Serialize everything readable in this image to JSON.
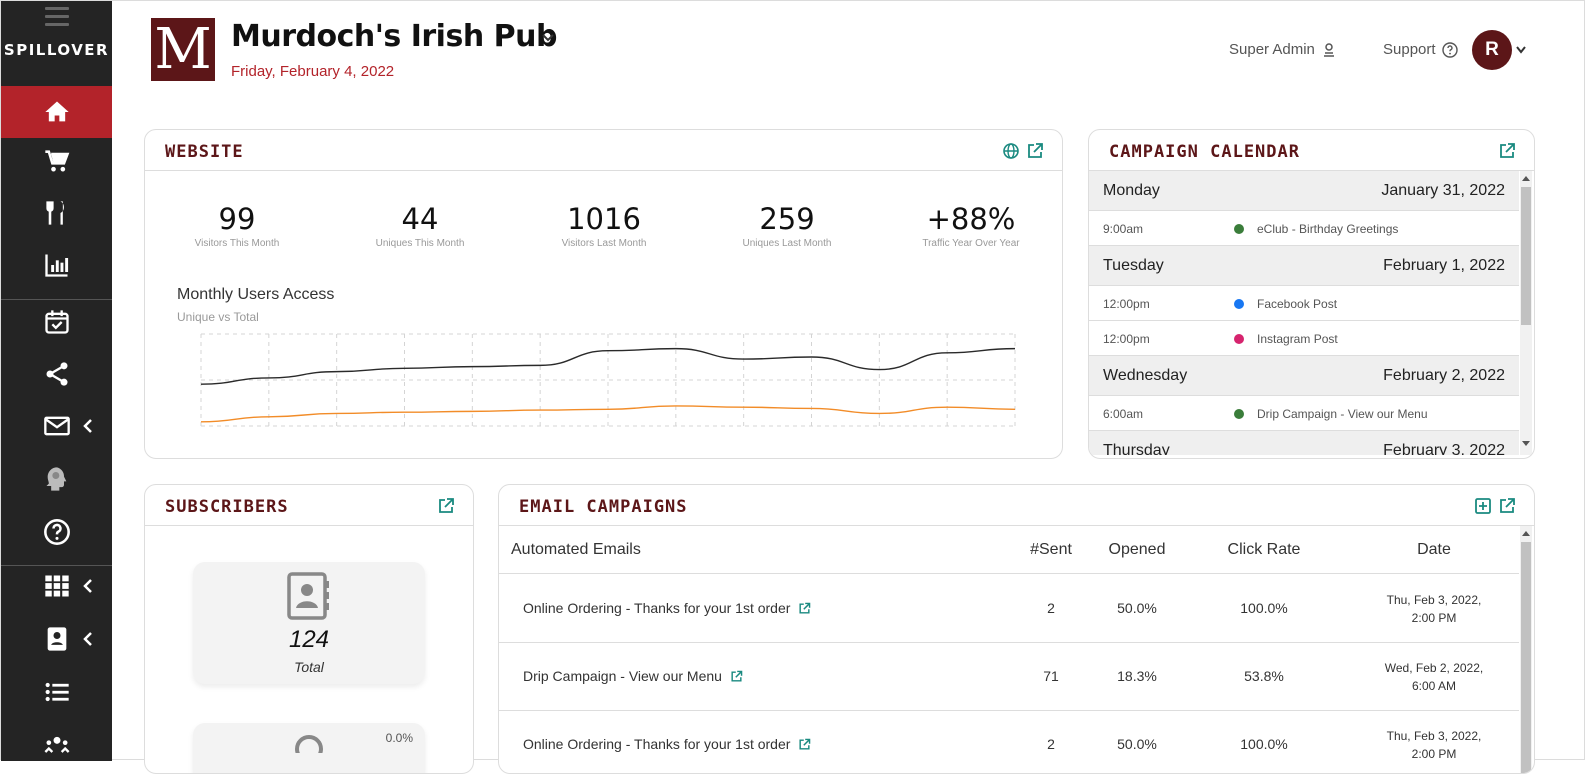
{
  "sidebar": {
    "logo": "SPILLOVER",
    "items": [
      {
        "name": "home",
        "icon": "home-icon"
      },
      {
        "name": "cart",
        "icon": "cart-icon"
      },
      {
        "name": "menu",
        "icon": "utensils-icon"
      },
      {
        "name": "reports",
        "icon": "chart-icon"
      },
      {
        "name": "calendar",
        "icon": "calendar-check-icon"
      },
      {
        "name": "social",
        "icon": "share-icon"
      },
      {
        "name": "email",
        "icon": "envelope-icon"
      },
      {
        "name": "insights",
        "icon": "brain-head-icon"
      },
      {
        "name": "help",
        "icon": "question-icon"
      },
      {
        "name": "apps",
        "icon": "grid-icon"
      },
      {
        "name": "contacts",
        "icon": "contact-book-icon"
      },
      {
        "name": "lists",
        "icon": "list-icon"
      },
      {
        "name": "team",
        "icon": "users-icon"
      }
    ]
  },
  "header": {
    "logo_letter": "M",
    "venue": "Murdoch's Irish Pub",
    "date": "Friday, February 4, 2022",
    "super_admin": "Super Admin",
    "support": "Support",
    "avatar_initial": "R"
  },
  "website": {
    "title": "WEBSITE",
    "stats": [
      {
        "value": "99",
        "label": "Visitors This Month"
      },
      {
        "value": "44",
        "label": "Uniques This Month"
      },
      {
        "value": "1016",
        "label": "Visitors Last Month"
      },
      {
        "value": "259",
        "label": "Uniques Last Month"
      },
      {
        "value": "+88%",
        "label": "Traffic Year Over Year"
      }
    ],
    "chart_title": "Monthly Users Access",
    "chart_subtitle": "Unique vs Total"
  },
  "chart_data": {
    "type": "line",
    "title": "Monthly Users Access",
    "subtitle": "Unique vs Total",
    "x": [
      1,
      2,
      3,
      4,
      5,
      6,
      7,
      8,
      9,
      10,
      11,
      12,
      13
    ],
    "series": [
      {
        "values": [
          1.0,
          1.15,
          1.3,
          1.38,
          1.42,
          1.45,
          1.8,
          1.85,
          1.6,
          1.65,
          1.35,
          1.75,
          1.85
        ],
        "color": "#2a2a2a"
      },
      {
        "values": [
          0.1,
          0.22,
          0.3,
          0.33,
          0.35,
          0.38,
          0.4,
          0.48,
          0.45,
          0.42,
          0.3,
          0.45,
          0.4
        ],
        "color": "#f28c28"
      }
    ],
    "grid": true,
    "ylim": [
      0,
      2.2
    ]
  },
  "calendar": {
    "title": "CAMPAIGN CALENDAR",
    "days": [
      {
        "day": "Monday",
        "date": "January 31, 2022",
        "events": [
          {
            "time": "9:00am",
            "name": "eClub - Birthday Greetings",
            "color": "#3a7d3a"
          }
        ]
      },
      {
        "day": "Tuesday",
        "date": "February 1, 2022",
        "events": [
          {
            "time": "12:00pm",
            "name": "Facebook Post",
            "color": "#1877f2"
          },
          {
            "time": "12:00pm",
            "name": "Instagram Post",
            "color": "#d6246e"
          }
        ]
      },
      {
        "day": "Wednesday",
        "date": "February 2, 2022",
        "events": [
          {
            "time": "6:00am",
            "name": "Drip Campaign - View our Menu",
            "color": "#3a7d3a"
          }
        ]
      },
      {
        "day": "Thursday",
        "date": "February 3, 2022",
        "events": []
      }
    ]
  },
  "subscribers": {
    "title": "SUBSCRIBERS",
    "total_value": "124",
    "total_label": "Total",
    "second_percent": "0.0%"
  },
  "email": {
    "title": "EMAIL CAMPAIGNS",
    "headers": {
      "name": "Automated Emails",
      "sent": "#Sent",
      "opened": "Opened",
      "click": "Click Rate",
      "date": "Date"
    },
    "rows": [
      {
        "name": "Online Ordering - Thanks for your 1st order",
        "sent": "2",
        "opened": "50.0%",
        "click": "100.0%",
        "date1": "Thu, Feb 3, 2022,",
        "date2": "2:00 PM"
      },
      {
        "name": "Drip Campaign - View our Menu",
        "sent": "71",
        "opened": "18.3%",
        "click": "53.8%",
        "date1": "Wed, Feb 2, 2022,",
        "date2": "6:00 AM"
      },
      {
        "name": "Online Ordering - Thanks for your 1st order",
        "sent": "2",
        "opened": "50.0%",
        "click": "100.0%",
        "date1": "Thu, Feb 3, 2022,",
        "date2": "2:00 PM"
      }
    ]
  },
  "colors": {
    "accent": "#b3232a",
    "brand": "#5c1618",
    "teal": "#1a8a80",
    "sidebar": "#242424"
  }
}
